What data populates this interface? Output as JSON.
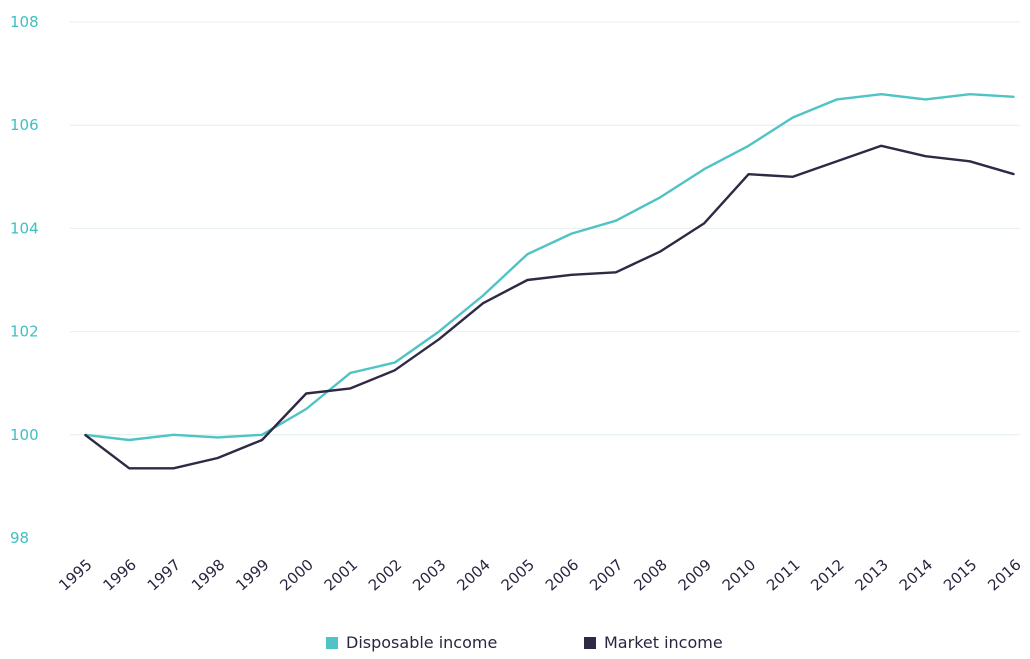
{
  "chart_data": {
    "type": "line",
    "title": "",
    "xlabel": "",
    "ylabel": "",
    "ylim": [
      98,
      108
    ],
    "yticks": [
      "98",
      "100",
      "102",
      "104",
      "106",
      "108"
    ],
    "x": [
      "1995",
      "1996",
      "1997",
      "1998",
      "1999",
      "2000",
      "2001",
      "2002",
      "2003",
      "2004",
      "2005",
      "2006",
      "2007",
      "2008",
      "2009",
      "2010",
      "2011",
      "2012",
      "2013",
      "2014",
      "2015",
      "2016"
    ],
    "grid": true,
    "legend_position": "bottom",
    "series": [
      {
        "name": "Disposable income",
        "color": "#4fc3c5",
        "values": [
          100.0,
          99.9,
          100.0,
          99.95,
          100.0,
          100.5,
          101.2,
          101.4,
          102.0,
          102.7,
          103.5,
          103.9,
          104.15,
          104.6,
          105.15,
          105.6,
          106.15,
          106.5,
          106.6,
          106.5,
          106.6,
          106.55
        ]
      },
      {
        "name": "Market income",
        "color": "#2f2944",
        "values": [
          100.0,
          99.35,
          99.35,
          99.55,
          99.9,
          100.8,
          100.9,
          101.25,
          101.85,
          102.55,
          103.0,
          103.1,
          103.15,
          103.55,
          104.1,
          105.05,
          105.0,
          105.3,
          105.6,
          105.4,
          105.3,
          105.05
        ]
      }
    ]
  }
}
